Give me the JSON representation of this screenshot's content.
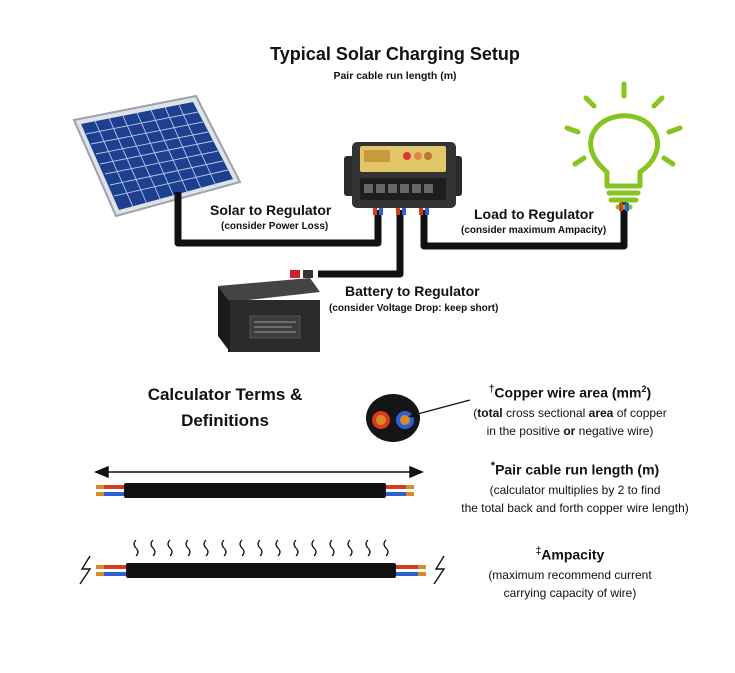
{
  "header": {
    "title": "Typical Solar Charging Setup",
    "subtitle": "Pair cable run length (m)"
  },
  "setup": {
    "solar": {
      "label": "Solar to Regulator",
      "note": "(consider Power Loss)"
    },
    "load": {
      "label": "Load to Regulator",
      "note": "(consider maximum Ampacity)"
    },
    "battery": {
      "label": "Battery to Regulator",
      "note": "(consider Voltage Drop: keep short)"
    }
  },
  "calculator": {
    "heading_line1": "Calculator Terms &",
    "heading_line2": "Definitions"
  },
  "definitions": {
    "area": {
      "mark": "†",
      "title": "Copper wire area (mm",
      "sup": "2",
      "close": ")",
      "line1_open": "(",
      "line1_bold1": "total",
      "line1_mid": " cross sectional ",
      "line1_bold2": "area",
      "line1_end": " of copper",
      "line2_start": "in the positive ",
      "line2_bold": "or",
      "line2_end": " negative wire)"
    },
    "run": {
      "mark": "*",
      "title": "Pair cable run length (m)",
      "line1": "(calculator multiplies by 2 to find",
      "line2": "the total back and forth copper wire length)"
    },
    "ampacity": {
      "mark": "‡",
      "title": "Ampacity",
      "line1": "(maximum recommend current",
      "line2": "carrying capacity of wire)"
    }
  },
  "colors": {
    "cable": "#111111",
    "positive": "#d83a1e",
    "negative": "#2a62d6",
    "copper": "#d98a2b",
    "bulb": "#86c51f",
    "panel": "#1d3f8f",
    "battery": "#2b2b2b"
  },
  "icons": [
    "solar-panel-icon",
    "charge-regulator-icon",
    "light-bulb-icon",
    "battery-icon",
    "cable-cross-section-icon",
    "double-arrow-icon",
    "heat-wave-icon",
    "lightning-icon"
  ]
}
